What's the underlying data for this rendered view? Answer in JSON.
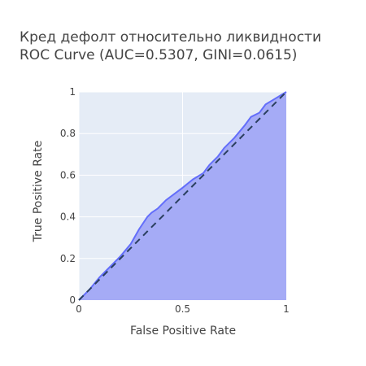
{
  "chart_data": {
    "type": "area",
    "title_lines": [
      "Кред дефолт относительно ликвидности",
      "ROC Curve (AUC=0.5307, GINI=0.0615)"
    ],
    "xlabel": "False Positive Rate",
    "ylabel": "True Positive Rate",
    "xlim": [
      0,
      1
    ],
    "ylim": [
      0,
      1
    ],
    "x_ticks": [
      {
        "v": 0,
        "label": "0"
      },
      {
        "v": 0.5,
        "label": "0.5"
      },
      {
        "v": 1,
        "label": "1"
      }
    ],
    "y_ticks": [
      {
        "v": 0,
        "label": "0"
      },
      {
        "v": 0.2,
        "label": "0.2"
      },
      {
        "v": 0.4,
        "label": "0.4"
      },
      {
        "v": 0.6,
        "label": "0.6"
      },
      {
        "v": 0.8,
        "label": "0.8"
      },
      {
        "v": 1,
        "label": "1"
      }
    ],
    "grid": true,
    "series": [
      {
        "x": [
          0,
          0.05,
          0.1,
          0.15,
          0.2,
          0.25,
          0.29,
          0.33,
          0.35,
          0.38,
          0.42,
          0.46,
          0.5,
          0.55,
          0.6,
          0.63,
          0.67,
          0.7,
          0.75,
          0.8,
          0.83,
          0.87,
          0.9,
          0.95,
          1.0
        ],
        "y": [
          0,
          0.05,
          0.11,
          0.16,
          0.21,
          0.27,
          0.34,
          0.4,
          0.42,
          0.44,
          0.48,
          0.51,
          0.54,
          0.58,
          0.61,
          0.65,
          0.69,
          0.73,
          0.78,
          0.84,
          0.88,
          0.9,
          0.94,
          0.97,
          1.0
        ],
        "color": "#636efa",
        "fill": "tozeroy"
      },
      {
        "x": [
          0,
          1
        ],
        "y": [
          0,
          1
        ],
        "color": "#2a3f5f",
        "dash": "dash"
      }
    ],
    "colors": {
      "plot_bg": "#e5ecf6",
      "fill": "#a5abf6",
      "line": "#636efa",
      "diagonal": "#2a3f5f",
      "grid": "#ffffff",
      "text": "#444444"
    }
  }
}
